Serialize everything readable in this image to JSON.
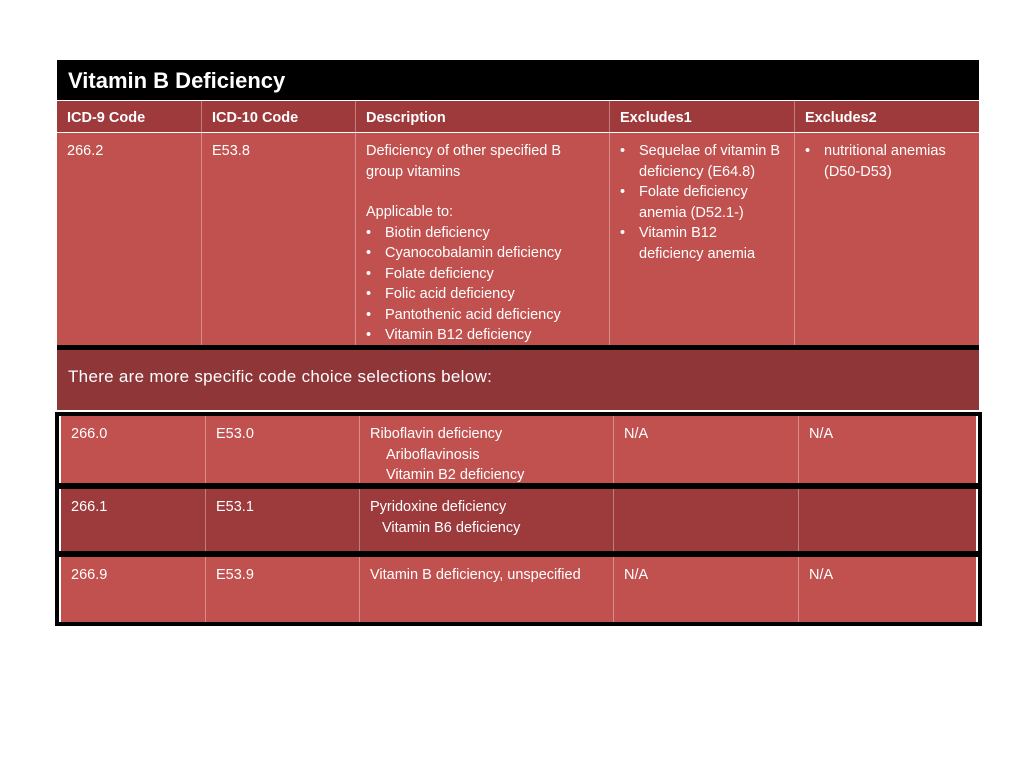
{
  "title": "Vitamin B Deficiency",
  "headers": {
    "icd9": "ICD-9 Code",
    "icd10": "ICD-10 Code",
    "description": "Description",
    "excludes1": "Excludes1",
    "excludes2": "Excludes2"
  },
  "main_row": {
    "icd9": "266.2",
    "icd10": "E53.8",
    "description": "Deficiency of other specified B group vitamins",
    "applicable_label": "Applicable to:",
    "applicable": [
      "Biotin deficiency",
      "Cyanocobalamin deficiency",
      "Folate deficiency",
      "Folic acid deficiency",
      "Pantothenic acid deficiency",
      "Vitamin B12 deficiency"
    ],
    "excludes1": [
      "Sequelae of vitamin B deficiency (E64.8)",
      "Folate deficiency anemia (D52.1-)",
      "Vitamin B12 deficiency anemia"
    ],
    "excludes2": [
      "nutritional anemias (D50-D53)"
    ]
  },
  "banner": "There are more specific code choice selections below:",
  "rows": [
    {
      "icd9": "266.0",
      "icd10": "E53.0",
      "description": "Riboflavin deficiency",
      "sub": [
        "Ariboflavinosis",
        "Vitamin B2 deficiency"
      ],
      "excludes1": "N/A",
      "excludes2": "N/A"
    },
    {
      "icd9": "266.1",
      "icd10": "E53.1",
      "description": "Pyridoxine deficiency",
      "sub": [
        "Vitamin B6 deficiency"
      ],
      "excludes1": "",
      "excludes2": ""
    },
    {
      "icd9": "266.9",
      "icd10": "E53.9",
      "description": "Vitamin B deficiency, unspecified",
      "sub": [],
      "excludes1": "N/A",
      "excludes2": "N/A"
    }
  ],
  "colors": {
    "title_bg": "#000000",
    "header_bg": "#9f3a3c",
    "row_bg": "#c1514f",
    "row_dark_bg": "#9c3a3c",
    "banner_bg": "#8e3638"
  }
}
